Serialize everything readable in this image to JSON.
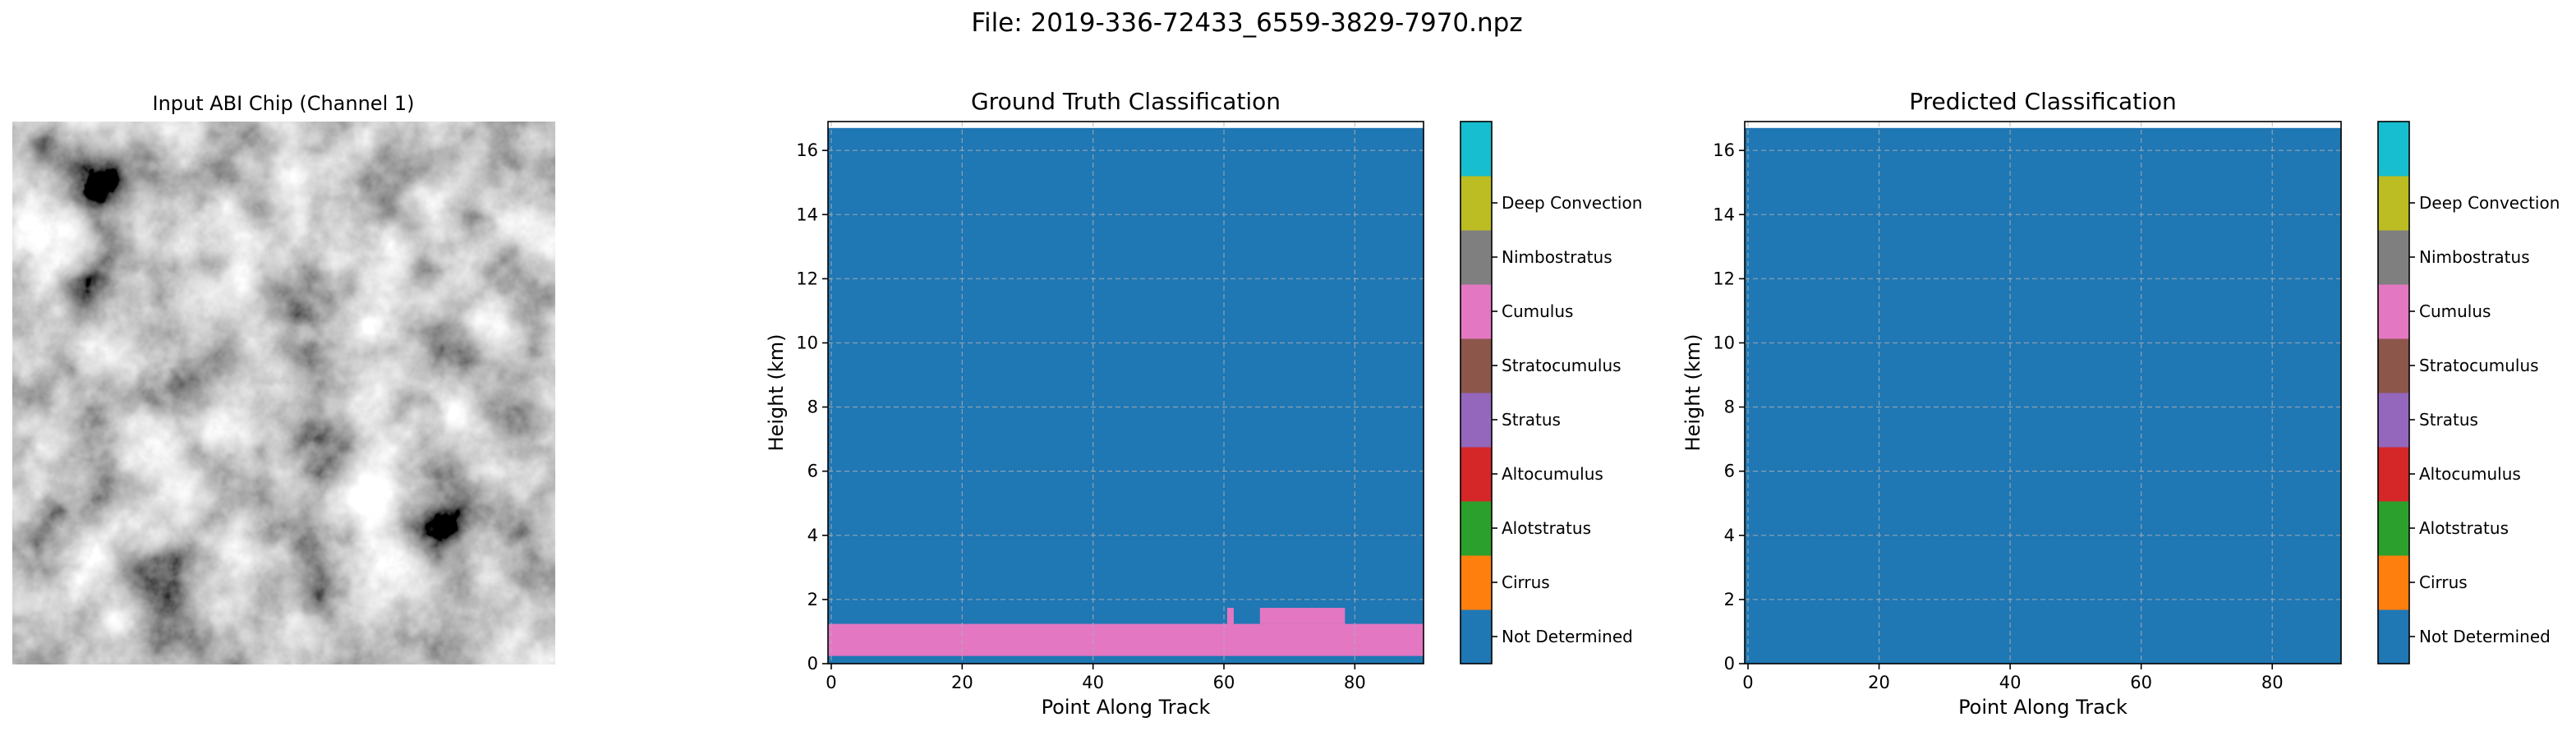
{
  "suptitle": "File: 2019-336-72433_6559-3829-7970.npz",
  "image_panel": {
    "title": "Input ABI Chip (Channel 1)"
  },
  "classes": [
    {
      "label": "Not Determined",
      "color": "#1f77b4"
    },
    {
      "label": "Cirrus",
      "color": "#ff7f0e"
    },
    {
      "label": "Alotstratus",
      "color": "#2ca02c"
    },
    {
      "label": "Altocumulus",
      "color": "#d62728"
    },
    {
      "label": "Stratus",
      "color": "#9467bd"
    },
    {
      "label": "Stratocumulus",
      "color": "#8c564b"
    },
    {
      "label": "Cumulus",
      "color": "#e377c2"
    },
    {
      "label": "Nimbostratus",
      "color": "#7f7f7f"
    },
    {
      "label": "Deep Convection",
      "color": "#bcbd22"
    },
    {
      "label": "",
      "color": "#17becf"
    }
  ],
  "chart_data": [
    {
      "type": "heatmap",
      "title": "Ground Truth Classification",
      "xlabel": "Point Along Track",
      "ylabel": "Height (km)",
      "xlim": [
        -0.5,
        90.5
      ],
      "ylim": [
        0,
        16.9
      ],
      "data_top_km": 16.7,
      "xticks": [
        "0",
        "20",
        "40",
        "60",
        "80"
      ],
      "yticks": [
        "0",
        "2",
        "4",
        "6",
        "8",
        "10",
        "12",
        "14",
        "16"
      ],
      "grid": true,
      "background_class": 0,
      "regions": [
        {
          "class": 6,
          "x": [
            -0.5,
            90.5
          ],
          "y": [
            0.24,
            1.24
          ]
        },
        {
          "class": 6,
          "x": [
            60.5,
            61.5
          ],
          "y": [
            1.24,
            1.74
          ]
        },
        {
          "class": 6,
          "x": [
            65.5,
            78.5
          ],
          "y": [
            1.24,
            1.74
          ]
        }
      ]
    },
    {
      "type": "heatmap",
      "title": "Predicted Classification",
      "xlabel": "Point Along Track",
      "ylabel": "Height (km)",
      "xlim": [
        -0.5,
        90.5
      ],
      "ylim": [
        0,
        16.9
      ],
      "data_top_km": 16.7,
      "xticks": [
        "0",
        "20",
        "40",
        "60",
        "80"
      ],
      "yticks": [
        "0",
        "2",
        "4",
        "6",
        "8",
        "10",
        "12",
        "14",
        "16"
      ],
      "grid": true,
      "background_class": 0,
      "regions": []
    }
  ]
}
